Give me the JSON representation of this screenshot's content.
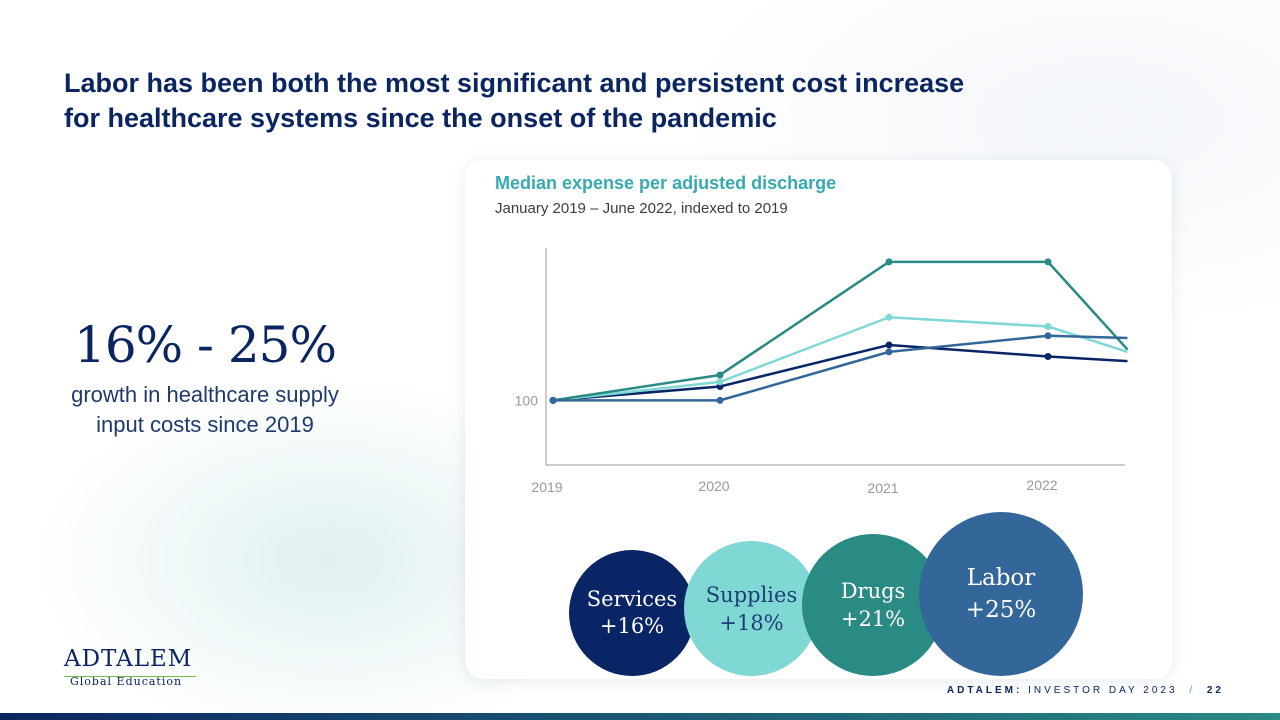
{
  "headline": {
    "line1": "Labor has been both the most significant and persistent cost increase",
    "line2": "for healthcare systems since the onset of the pandemic"
  },
  "stat": {
    "value": "16% - 25%",
    "desc_line1": "growth in healthcare supply",
    "desc_line2": "input costs since 2019"
  },
  "chart_data": {
    "type": "line",
    "title": "Median expense per adjusted discharge",
    "subtitle": "January 2019 – June 2022, indexed to 2019",
    "x": [
      2019,
      2020,
      2021,
      2022,
      2022.5
    ],
    "x_ticks": [
      "2019",
      "2020",
      "2021",
      "2022"
    ],
    "y_tick_labels": [
      "100"
    ],
    "ylim": [
      86,
      133
    ],
    "grid": false,
    "series": [
      {
        "name": "Services",
        "color": "#0a2565",
        "values": [
          100,
          103,
          112,
          109.5,
          108.5
        ],
        "markers": [
          true,
          true,
          true,
          true,
          false
        ]
      },
      {
        "name": "Supplies",
        "color": "#7fd8d4",
        "values": [
          100,
          104,
          118,
          116,
          110.5
        ],
        "markers": [
          true,
          true,
          true,
          true,
          false
        ]
      },
      {
        "name": "Drugs",
        "color": "#2a8a84",
        "values": [
          100,
          105.5,
          130,
          130,
          111
        ],
        "markers": [
          true,
          true,
          true,
          true,
          false
        ]
      },
      {
        "name": "Labor",
        "color": "#346799",
        "values": [
          100,
          100,
          110.5,
          114,
          113.5
        ],
        "markers": [
          true,
          true,
          true,
          true,
          false
        ]
      }
    ]
  },
  "bubbles": [
    {
      "name": "Services",
      "value": "+16%"
    },
    {
      "name": "Supplies",
      "value": "+18%"
    },
    {
      "name": "Drugs",
      "value": "+21%"
    },
    {
      "name": "Labor",
      "value": "+25%"
    }
  ],
  "logo": {
    "main": "ADTALEM",
    "sub": "Global Education"
  },
  "footer": {
    "brand": "ADTALEM:",
    "event": "INVESTOR DAY 2023",
    "separator": "/",
    "page": "22"
  },
  "colors": {
    "navy": "#0b2561",
    "teal_title": "#37aab0",
    "axis": "#9a9a9a"
  }
}
